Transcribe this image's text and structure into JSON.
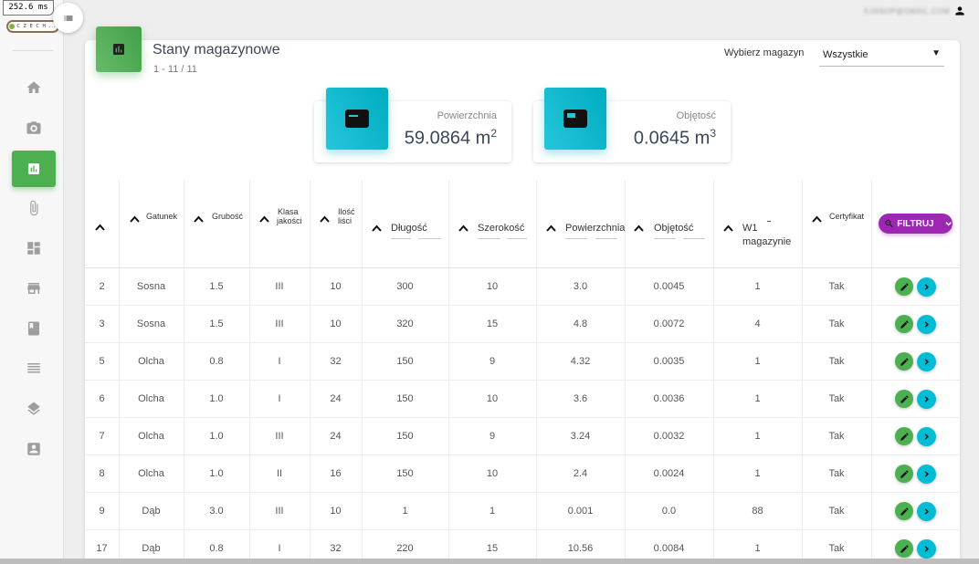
{
  "debug": {
    "timing": "252.6 ms"
  },
  "logo": {
    "text": "C Z E C H ..."
  },
  "header": {
    "user_email": "KJANOP@GMAIL.COM"
  },
  "page": {
    "title": "Stany magazynowe",
    "subtitle": "1 - 11 / 11"
  },
  "warehouse_select": {
    "label": "Wybierz magazyn",
    "value": "Wszystkie"
  },
  "stats": {
    "area": {
      "label": "Powierzchnia",
      "value": "59.0864 m",
      "unit_sup": "2"
    },
    "volume": {
      "label": "Objętość",
      "value": "0.0645 m",
      "unit_sup": "3"
    }
  },
  "table": {
    "headers": {
      "gatunek": "Gatunek",
      "grubosc": "Grubość",
      "klasa_1": "Klasa",
      "klasa_2": "jakości",
      "ilosc_1": "Ilość",
      "ilosc_2": "liści",
      "dlugosc": "Długość",
      "szerokosc": "Szerokość",
      "powierzchnia": "Powierzchnia",
      "objetosc": "Objętość",
      "magazyn_1": "W1",
      "magazyn_2": "magazynie",
      "certyfikat": "Certyfikat"
    },
    "filter_label": "FILTRUJ",
    "rows": [
      {
        "id": "2",
        "gatunek": "Sosna",
        "grubosc": "1.5",
        "klasa": "III",
        "ilosc": "10",
        "dlugosc": "300",
        "szerokosc": "10",
        "powierzchnia": "3.0",
        "objetosc": "0.0045",
        "magazyn": "1",
        "certyfikat": "Tak"
      },
      {
        "id": "3",
        "gatunek": "Sosna",
        "grubosc": "1.5",
        "klasa": "III",
        "ilosc": "10",
        "dlugosc": "320",
        "szerokosc": "15",
        "powierzchnia": "4.8",
        "objetosc": "0.0072",
        "magazyn": "4",
        "certyfikat": "Tak"
      },
      {
        "id": "5",
        "gatunek": "Olcha",
        "grubosc": "0.8",
        "klasa": "I",
        "ilosc": "32",
        "dlugosc": "150",
        "szerokosc": "9",
        "powierzchnia": "4.32",
        "objetosc": "0.0035",
        "magazyn": "1",
        "certyfikat": "Tak"
      },
      {
        "id": "6",
        "gatunek": "Olcha",
        "grubosc": "1.0",
        "klasa": "I",
        "ilosc": "24",
        "dlugosc": "150",
        "szerokosc": "10",
        "powierzchnia": "3.6",
        "objetosc": "0.0036",
        "magazyn": "1",
        "certyfikat": "Tak"
      },
      {
        "id": "7",
        "gatunek": "Olcha",
        "grubosc": "1.0",
        "klasa": "III",
        "ilosc": "24",
        "dlugosc": "150",
        "szerokosc": "9",
        "powierzchnia": "3.24",
        "objetosc": "0.0032",
        "magazyn": "1",
        "certyfikat": "Tak"
      },
      {
        "id": "8",
        "gatunek": "Olcha",
        "grubosc": "1.0",
        "klasa": "II",
        "ilosc": "16",
        "dlugosc": "150",
        "szerokosc": "10",
        "powierzchnia": "2.4",
        "objetosc": "0.0024",
        "magazyn": "1",
        "certyfikat": "Tak"
      },
      {
        "id": "9",
        "gatunek": "Dąb",
        "grubosc": "3.0",
        "klasa": "III",
        "ilosc": "10",
        "dlugosc": "1",
        "szerokosc": "1",
        "powierzchnia": "0.001",
        "objetosc": "0.0",
        "magazyn": "88",
        "certyfikat": "Tak"
      },
      {
        "id": "17",
        "gatunek": "Dąb",
        "grubosc": "0.8",
        "klasa": "I",
        "ilosc": "32",
        "dlugosc": "220",
        "szerokosc": "15",
        "powierzchnia": "10.56",
        "objetosc": "0.0084",
        "magazyn": "1",
        "certyfikat": "Tak"
      }
    ]
  },
  "colors": {
    "green": "#4caf50",
    "cyan": "#00bcd4",
    "purple": "#9c27b0"
  }
}
